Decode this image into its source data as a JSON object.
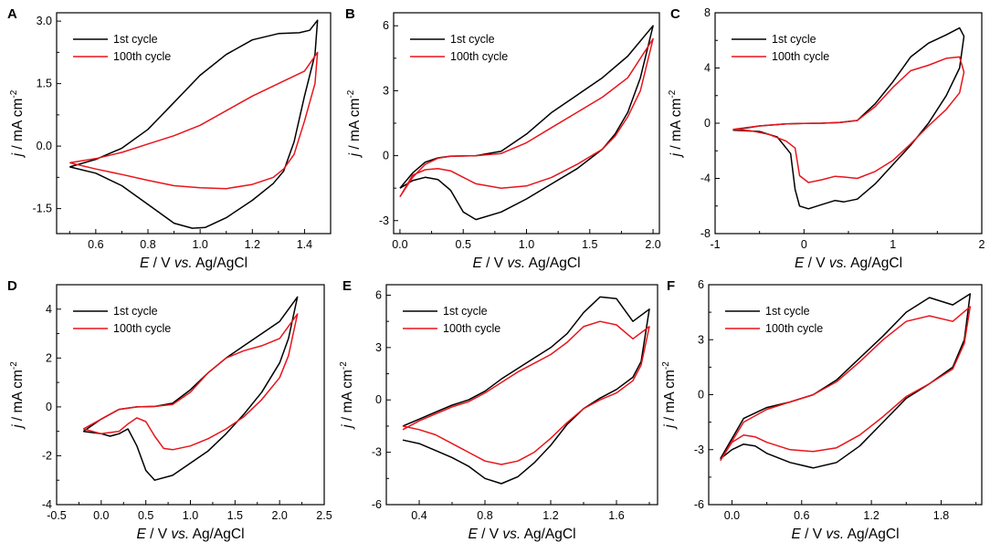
{
  "figure": {
    "panels": [
      {
        "letter": "A",
        "ylabel": {
          "prefix": "j",
          "text": " / mA cm",
          "sup": "-2"
        },
        "xlabel": {
          "prefix": "E",
          "middle": " / V ",
          "vs": "vs.",
          "suffix": " Ag/AgCl"
        }
      },
      {
        "letter": "B",
        "ylabel": {
          "prefix": "j",
          "text": " / mA cm",
          "sup": "-2"
        },
        "xlabel": {
          "prefix": "E",
          "middle": " / V ",
          "vs": "vs.",
          "suffix": " Ag/AgCl"
        }
      },
      {
        "letter": "C",
        "ylabel": {
          "prefix": "j",
          "text": " / mA cm",
          "sup": "-2"
        },
        "xlabel": {
          "prefix": "E",
          "middle": " / V ",
          "vs": "vs.",
          "suffix": " Ag/AgCl"
        }
      },
      {
        "letter": "D",
        "ylabel": {
          "prefix": "j",
          "text": " / mA cm",
          "sup": "-2"
        },
        "xlabel": {
          "prefix": "E",
          "middle": " / V ",
          "vs": "vs.",
          "suffix": " Ag/AgCl"
        }
      },
      {
        "letter": "E",
        "ylabel": {
          "prefix": "j",
          "text": " / mA cm",
          "sup": "-2"
        },
        "xlabel": {
          "prefix": "E",
          "middle": " / V ",
          "vs": "vs.",
          "suffix": " Ag/AgCl"
        }
      },
      {
        "letter": "F",
        "ylabel": {
          "prefix": "j",
          "text": " / mA cm",
          "sup": "-2"
        },
        "xlabel": {
          "prefix": "E",
          "middle": " / V ",
          "vs": "vs.",
          "suffix": " Ag/AgCl"
        }
      }
    ],
    "colors": {
      "first_cycle": "#000000",
      "hundredth_cycle": "#e8141b",
      "axis": "#000000"
    }
  },
  "chart_data": [
    {
      "type": "line",
      "panel": "A",
      "xlabel": "E / V vs. Ag/AgCl",
      "ylabel": "j / mA cm-2",
      "xlim": [
        0.45,
        1.5
      ],
      "ylim": [
        -2.1,
        3.2
      ],
      "xticks": [
        0.6,
        0.8,
        1.0,
        1.2,
        1.4
      ],
      "xtick_labels": [
        "0.6",
        "0.8",
        "1.0",
        "1.2",
        "1.4"
      ],
      "yticks": [
        -1.5,
        0.0,
        1.5,
        3.0
      ],
      "ytick_labels": [
        "-1.5",
        "0.0",
        "1.5",
        "3.0"
      ],
      "legend": [
        "1st cycle",
        "100th cycle"
      ],
      "series": [
        {
          "name": "1st cycle",
          "x": [
            0.5,
            0.6,
            0.7,
            0.8,
            0.9,
            1.0,
            1.1,
            1.2,
            1.3,
            1.38,
            1.42,
            1.45,
            1.44,
            1.4,
            1.36,
            1.32,
            1.28,
            1.2,
            1.1,
            1.02,
            0.97,
            0.9,
            0.8,
            0.7,
            0.6,
            0.5
          ],
          "y": [
            -0.5,
            -0.32,
            -0.05,
            0.4,
            1.05,
            1.7,
            2.2,
            2.55,
            2.7,
            2.72,
            2.78,
            3.02,
            2.2,
            1.2,
            0.1,
            -0.6,
            -0.9,
            -1.3,
            -1.72,
            -1.95,
            -1.97,
            -1.85,
            -1.4,
            -0.95,
            -0.65,
            -0.5
          ]
        },
        {
          "name": "100th cycle",
          "x": [
            0.5,
            0.6,
            0.7,
            0.8,
            0.9,
            1.0,
            1.1,
            1.2,
            1.3,
            1.4,
            1.45,
            1.44,
            1.4,
            1.36,
            1.32,
            1.28,
            1.2,
            1.1,
            1.0,
            0.9,
            0.8,
            0.7,
            0.6,
            0.5
          ],
          "y": [
            -0.4,
            -0.3,
            -0.15,
            0.05,
            0.25,
            0.5,
            0.85,
            1.2,
            1.5,
            1.8,
            2.25,
            1.5,
            0.6,
            -0.2,
            -0.55,
            -0.75,
            -0.92,
            -1.02,
            -1.0,
            -0.95,
            -0.82,
            -0.68,
            -0.55,
            -0.4
          ]
        }
      ]
    },
    {
      "type": "line",
      "panel": "B",
      "xlabel": "E / V vs. Ag/AgCl",
      "ylabel": "j / mA cm-2",
      "xlim": [
        -0.05,
        2.05
      ],
      "ylim": [
        -3.6,
        6.6
      ],
      "xticks": [
        0.0,
        0.5,
        1.0,
        1.5,
        2.0
      ],
      "xtick_labels": [
        "0.0",
        "0.5",
        "1.0",
        "1.5",
        "2.0"
      ],
      "yticks": [
        -3,
        0,
        3,
        6
      ],
      "ytick_labels": [
        "-3",
        "0",
        "3",
        "6"
      ],
      "legend": [
        "1st cycle",
        "100th cycle"
      ],
      "series": [
        {
          "name": "1st cycle",
          "x": [
            0.0,
            0.1,
            0.2,
            0.3,
            0.4,
            0.6,
            0.8,
            1.0,
            1.2,
            1.4,
            1.6,
            1.8,
            2.0,
            1.9,
            1.8,
            1.7,
            1.6,
            1.4,
            1.2,
            1.0,
            0.8,
            0.6,
            0.5,
            0.4,
            0.3,
            0.2,
            0.1,
            0.0
          ],
          "y": [
            -1.5,
            -0.8,
            -0.3,
            -0.1,
            -0.02,
            0.0,
            0.2,
            1.0,
            2.0,
            2.8,
            3.6,
            4.6,
            6.0,
            3.6,
            2.0,
            1.0,
            0.3,
            -0.6,
            -1.3,
            -2.0,
            -2.6,
            -2.95,
            -2.6,
            -1.6,
            -1.1,
            -1.0,
            -1.15,
            -1.5
          ]
        },
        {
          "name": "100th cycle",
          "x": [
            0.0,
            0.1,
            0.2,
            0.3,
            0.4,
            0.6,
            0.8,
            1.0,
            1.2,
            1.4,
            1.6,
            1.8,
            2.0,
            1.9,
            1.8,
            1.7,
            1.6,
            1.4,
            1.2,
            1.0,
            0.8,
            0.6,
            0.5,
            0.4,
            0.3,
            0.2,
            0.1,
            0.0
          ],
          "y": [
            -1.9,
            -1.0,
            -0.4,
            -0.12,
            -0.03,
            0.0,
            0.1,
            0.6,
            1.3,
            2.0,
            2.7,
            3.6,
            5.4,
            3.0,
            1.8,
            0.9,
            0.3,
            -0.4,
            -1.0,
            -1.4,
            -1.5,
            -1.3,
            -1.0,
            -0.7,
            -0.6,
            -0.65,
            -0.9,
            -1.9
          ]
        }
      ]
    },
    {
      "type": "line",
      "panel": "C",
      "xlabel": "E / V vs. Ag/AgCl",
      "ylabel": "j / mA cm-2",
      "xlim": [
        -1.0,
        2.0
      ],
      "ylim": [
        -8.0,
        8.0
      ],
      "xticks": [
        -1,
        0,
        1,
        2
      ],
      "xtick_labels": [
        "-1",
        "0",
        "1",
        "2"
      ],
      "yticks": [
        -8,
        -4,
        0,
        4,
        8
      ],
      "ytick_labels": [
        "-8",
        "-4",
        "0",
        "4",
        "8"
      ],
      "legend": [
        "1st cycle",
        "100th cycle"
      ],
      "series": [
        {
          "name": "1st cycle",
          "x": [
            -0.8,
            -0.5,
            -0.2,
            0.0,
            0.2,
            0.4,
            0.6,
            0.8,
            1.0,
            1.2,
            1.4,
            1.6,
            1.75,
            1.8,
            1.75,
            1.6,
            1.4,
            1.2,
            1.0,
            0.8,
            0.6,
            0.45,
            0.35,
            0.2,
            0.05,
            -0.05,
            -0.1,
            -0.15,
            -0.3,
            -0.5,
            -0.8
          ],
          "y": [
            -0.5,
            -0.2,
            -0.05,
            -0.02,
            0.0,
            0.05,
            0.2,
            1.4,
            3.0,
            4.8,
            5.8,
            6.4,
            6.9,
            6.3,
            4.0,
            2.0,
            0.0,
            -1.6,
            -3.0,
            -4.4,
            -5.5,
            -5.7,
            -5.6,
            -5.9,
            -6.2,
            -6.0,
            -4.8,
            -2.2,
            -1.0,
            -0.6,
            -0.5
          ]
        },
        {
          "name": "100th cycle",
          "x": [
            -0.8,
            -0.5,
            -0.2,
            0.0,
            0.2,
            0.4,
            0.6,
            0.8,
            1.0,
            1.2,
            1.4,
            1.6,
            1.75,
            1.8,
            1.75,
            1.6,
            1.4,
            1.2,
            1.0,
            0.8,
            0.6,
            0.45,
            0.35,
            0.2,
            0.05,
            -0.05,
            -0.1,
            -0.2,
            -0.4,
            -0.6,
            -0.8
          ],
          "y": [
            -0.45,
            -0.2,
            -0.05,
            -0.02,
            0.0,
            0.05,
            0.2,
            1.2,
            2.6,
            3.8,
            4.2,
            4.7,
            4.8,
            3.7,
            2.2,
            1.0,
            -0.2,
            -1.5,
            -2.7,
            -3.5,
            -4.0,
            -3.9,
            -3.85,
            -4.1,
            -4.3,
            -3.8,
            -1.8,
            -1.3,
            -0.8,
            -0.55,
            -0.45
          ]
        }
      ]
    },
    {
      "type": "line",
      "panel": "D",
      "xlabel": "E / V vs. Ag/AgCl",
      "ylabel": "j / mA cm-2",
      "xlim": [
        -0.5,
        2.5
      ],
      "ylim": [
        -4.0,
        5.0
      ],
      "xticks": [
        -0.5,
        0.0,
        0.5,
        1.0,
        1.5,
        2.0,
        2.5
      ],
      "xtick_labels": [
        "-0.5",
        "0.0",
        "0.5",
        "1.0",
        "1.5",
        "2.0",
        "2.5"
      ],
      "yticks": [
        -4,
        -2,
        0,
        2,
        4
      ],
      "ytick_labels": [
        "-4",
        "-2",
        "0",
        "2",
        "4"
      ],
      "legend": [
        "1st cycle",
        "100th cycle"
      ],
      "series": [
        {
          "name": "1st cycle",
          "x": [
            -0.2,
            0.0,
            0.2,
            0.4,
            0.6,
            0.8,
            1.0,
            1.2,
            1.4,
            1.6,
            1.8,
            2.0,
            2.2,
            2.1,
            2.0,
            1.8,
            1.6,
            1.4,
            1.2,
            1.0,
            0.8,
            0.6,
            0.5,
            0.4,
            0.3,
            0.2,
            0.1,
            0.0,
            -0.2
          ],
          "y": [
            -1.0,
            -0.5,
            -0.1,
            0.0,
            0.02,
            0.15,
            0.7,
            1.4,
            2.0,
            2.5,
            3.0,
            3.5,
            4.5,
            2.8,
            1.8,
            0.6,
            -0.3,
            -1.1,
            -1.8,
            -2.3,
            -2.8,
            -3.0,
            -2.6,
            -1.6,
            -0.9,
            -1.1,
            -1.2,
            -1.1,
            -1.0
          ]
        },
        {
          "name": "100th cycle",
          "x": [
            -0.2,
            0.0,
            0.2,
            0.4,
            0.6,
            0.8,
            1.0,
            1.2,
            1.4,
            1.6,
            1.8,
            2.0,
            2.2,
            2.1,
            2.0,
            1.8,
            1.6,
            1.4,
            1.2,
            1.0,
            0.8,
            0.7,
            0.6,
            0.5,
            0.4,
            0.3,
            0.2,
            0.0,
            -0.2
          ],
          "y": [
            -0.9,
            -0.5,
            -0.1,
            0.0,
            0.02,
            0.1,
            0.6,
            1.4,
            2.0,
            2.3,
            2.5,
            2.8,
            3.8,
            2.1,
            1.2,
            0.3,
            -0.4,
            -0.9,
            -1.3,
            -1.6,
            -1.75,
            -1.7,
            -1.2,
            -0.6,
            -0.45,
            -0.7,
            -1.0,
            -1.1,
            -0.9
          ]
        }
      ]
    },
    {
      "type": "line",
      "panel": "E",
      "xlabel": "E / V vs. Ag/AgCl",
      "ylabel": "j / mA cm-2",
      "xlim": [
        0.2,
        1.85
      ],
      "ylim": [
        -6.0,
        6.6
      ],
      "xticks": [
        0.4,
        0.8,
        1.2,
        1.6
      ],
      "xtick_labels": [
        "0.4",
        "0.8",
        "1.2",
        "1.6"
      ],
      "yticks": [
        -6,
        -3,
        0,
        3,
        6
      ],
      "ytick_labels": [
        "-6",
        "-3",
        "0",
        "3",
        "6"
      ],
      "legend": [
        "1st cycle",
        "100th cycle"
      ],
      "series": [
        {
          "name": "1st cycle",
          "x": [
            0.3,
            0.4,
            0.5,
            0.6,
            0.7,
            0.8,
            0.9,
            1.0,
            1.1,
            1.2,
            1.3,
            1.4,
            1.5,
            1.6,
            1.7,
            1.8,
            1.75,
            1.7,
            1.6,
            1.5,
            1.4,
            1.3,
            1.2,
            1.1,
            1.0,
            0.9,
            0.8,
            0.7,
            0.6,
            0.5,
            0.4,
            0.3
          ],
          "y": [
            -1.5,
            -1.1,
            -0.7,
            -0.3,
            0.0,
            0.5,
            1.2,
            1.8,
            2.4,
            3.0,
            3.8,
            5.0,
            5.9,
            5.8,
            4.5,
            5.2,
            2.2,
            1.3,
            0.6,
            0.1,
            -0.5,
            -1.4,
            -2.6,
            -3.6,
            -4.4,
            -4.8,
            -4.5,
            -3.8,
            -3.3,
            -2.9,
            -2.5,
            -2.3
          ]
        },
        {
          "name": "100th cycle",
          "x": [
            0.3,
            0.4,
            0.5,
            0.6,
            0.7,
            0.8,
            0.9,
            1.0,
            1.1,
            1.2,
            1.3,
            1.4,
            1.5,
            1.6,
            1.7,
            1.8,
            1.75,
            1.7,
            1.6,
            1.5,
            1.4,
            1.3,
            1.2,
            1.1,
            1.0,
            0.9,
            0.8,
            0.7,
            0.6,
            0.5,
            0.4,
            0.3
          ],
          "y": [
            -1.7,
            -1.2,
            -0.8,
            -0.4,
            -0.1,
            0.4,
            1.0,
            1.6,
            2.1,
            2.6,
            3.3,
            4.2,
            4.5,
            4.3,
            3.5,
            4.2,
            2.0,
            1.1,
            0.4,
            0.0,
            -0.5,
            -1.3,
            -2.2,
            -3.0,
            -3.5,
            -3.7,
            -3.5,
            -3.0,
            -2.5,
            -2.0,
            -1.7,
            -1.5
          ]
        }
      ]
    },
    {
      "type": "line",
      "panel": "F",
      "xlabel": "E / V vs. Ag/AgCl",
      "ylabel": "j / mA cm-2",
      "xlim": [
        -0.2,
        2.15
      ],
      "ylim": [
        -6.0,
        6.0
      ],
      "xticks": [
        0.0,
        0.6,
        1.2,
        1.8
      ],
      "xtick_labels": [
        "0.0",
        "0.6",
        "1.2",
        "1.8"
      ],
      "yticks": [
        -6,
        -3,
        0,
        3,
        6
      ],
      "ytick_labels": [
        "-6",
        "-3",
        "0",
        "3",
        "6"
      ],
      "legend": [
        "1st cycle",
        "100th cycle"
      ],
      "series": [
        {
          "name": "1st cycle",
          "x": [
            -0.1,
            0.1,
            0.3,
            0.5,
            0.7,
            0.9,
            1.1,
            1.3,
            1.5,
            1.7,
            1.9,
            2.05,
            2.0,
            1.9,
            1.7,
            1.5,
            1.3,
            1.1,
            0.9,
            0.7,
            0.5,
            0.3,
            0.2,
            0.1,
            0.0,
            -0.1
          ],
          "y": [
            -3.5,
            -1.3,
            -0.7,
            -0.4,
            0.0,
            0.8,
            2.0,
            3.2,
            4.5,
            5.3,
            4.9,
            5.5,
            3.0,
            1.5,
            0.6,
            -0.2,
            -1.5,
            -2.8,
            -3.7,
            -4.0,
            -3.7,
            -3.2,
            -2.8,
            -2.7,
            -3.0,
            -3.5
          ]
        },
        {
          "name": "100th cycle",
          "x": [
            -0.1,
            0.1,
            0.3,
            0.5,
            0.7,
            0.9,
            1.1,
            1.3,
            1.5,
            1.7,
            1.9,
            2.05,
            2.0,
            1.9,
            1.7,
            1.5,
            1.3,
            1.1,
            0.9,
            0.7,
            0.5,
            0.3,
            0.2,
            0.1,
            0.0,
            -0.1
          ],
          "y": [
            -3.6,
            -1.5,
            -0.8,
            -0.4,
            0.0,
            0.7,
            1.8,
            3.0,
            4.0,
            4.3,
            4.0,
            4.8,
            2.8,
            1.4,
            0.6,
            -0.1,
            -1.2,
            -2.2,
            -2.9,
            -3.1,
            -3.0,
            -2.6,
            -2.3,
            -2.2,
            -2.6,
            -3.6
          ]
        }
      ]
    }
  ]
}
